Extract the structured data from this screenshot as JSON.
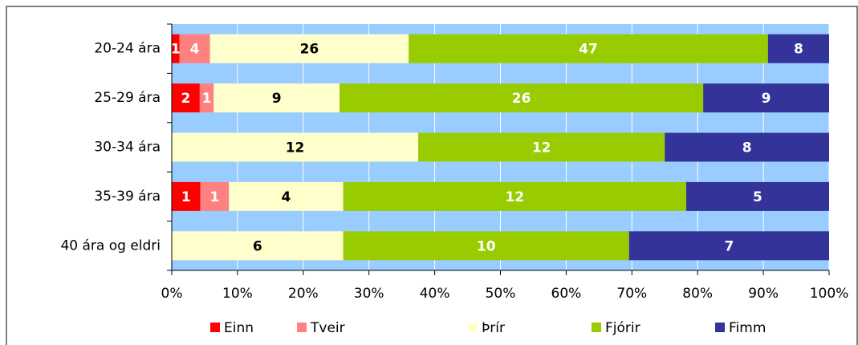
{
  "chart_data": {
    "type": "bar",
    "orientation": "horizontal",
    "stacking": "percent",
    "categories": [
      "20-24 ára",
      "25-29 ára",
      "30-34 ára",
      "35-39 ára",
      "40 ára og eldri"
    ],
    "series": [
      {
        "name": "Einn",
        "color": "#ff0000",
        "label_color": "#ffffff",
        "values": [
          1,
          2,
          null,
          1,
          null
        ]
      },
      {
        "name": "Tveir",
        "color": "#ff8080",
        "label_color": "#ffffff",
        "values": [
          4,
          1,
          null,
          1,
          null
        ]
      },
      {
        "name": "Þrír",
        "color": "#ffffcc",
        "label_color": "#000000",
        "values": [
          26,
          9,
          12,
          4,
          6
        ]
      },
      {
        "name": "Fjórir",
        "color": "#99cc00",
        "label_color": "#ffffff",
        "values": [
          47,
          26,
          12,
          12,
          10
        ]
      },
      {
        "name": "Fimm",
        "color": "#333399",
        "label_color": "#ffffff",
        "values": [
          8,
          9,
          8,
          5,
          7
        ]
      }
    ],
    "xlim": [
      0,
      100
    ],
    "xticks": [
      {
        "value": 0,
        "label": "0%"
      },
      {
        "value": 10,
        "label": "10%"
      },
      {
        "value": 20,
        "label": "20%"
      },
      {
        "value": 30,
        "label": "30%"
      },
      {
        "value": 40,
        "label": "40%"
      },
      {
        "value": 50,
        "label": "50%"
      },
      {
        "value": 60,
        "label": "60%"
      },
      {
        "value": 70,
        "label": "70%"
      },
      {
        "value": 80,
        "label": "80%"
      },
      {
        "value": 90,
        "label": "90%"
      },
      {
        "value": 100,
        "label": "100%"
      }
    ],
    "grid": true,
    "plot_background": "#99ccff",
    "legend": "bottom"
  }
}
